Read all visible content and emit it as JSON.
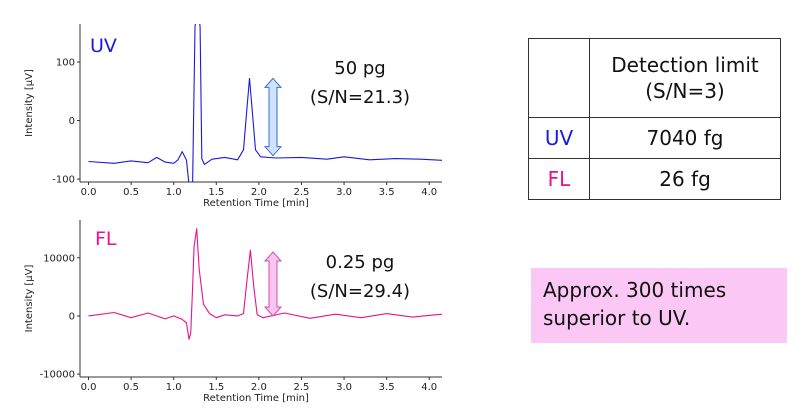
{
  "chart_data": [
    {
      "type": "line",
      "panel_label": "UV",
      "color": "#1a1adc",
      "xlabel": "Retention Time [min]",
      "ylabel": "Intensity [μV]",
      "xlim": [
        -0.1,
        4.15
      ],
      "ylim": [
        -105,
        165
      ],
      "xticks": [
        "0.0",
        "0.5",
        "1.0",
        "1.5",
        "2.0",
        "2.5",
        "3.0",
        "3.5",
        "4.0"
      ],
      "xtick_values": [
        0,
        0.5,
        1,
        1.5,
        2,
        2.5,
        3,
        3.5,
        4
      ],
      "yticks": [
        "100",
        "0",
        "-100"
      ],
      "ytick_values": [
        100,
        0,
        -100
      ],
      "annotation": {
        "amount": "50 pg",
        "sn": "(S/N=21.3)",
        "arrow_top": 72,
        "arrow_bottom": -60
      },
      "series": [
        {
          "x": [
            0,
            0.3,
            0.5,
            0.7,
            0.8,
            0.9,
            1.0,
            1.05,
            1.1,
            1.15,
            1.18,
            1.22,
            1.25,
            1.28,
            1.31,
            1.33,
            1.36,
            1.45,
            1.6,
            1.75,
            1.82,
            1.86,
            1.89,
            1.92,
            1.96,
            2.02,
            2.2,
            2.5,
            2.8,
            3.0,
            3.3,
            3.6,
            3.9,
            4.15
          ],
          "y": [
            -70,
            -73,
            -69,
            -72,
            -63,
            -71,
            -73,
            -67,
            -53,
            -68,
            -110,
            -130,
            160,
            200,
            160,
            -65,
            -75,
            -66,
            -63,
            -67,
            -50,
            20,
            72,
            20,
            -50,
            -62,
            -64,
            -63,
            -66,
            -62,
            -67,
            -65,
            -66,
            -68
          ]
        }
      ]
    },
    {
      "type": "line",
      "panel_label": "FL",
      "color": "#e6138c",
      "xlabel": "Retention Time [min]",
      "ylabel": "Intensity [μV]",
      "xlim": [
        -0.1,
        4.15
      ],
      "ylim": [
        -10500,
        16500
      ],
      "xticks": [
        "0.0",
        "0.5",
        "1.0",
        "1.5",
        "2.0",
        "2.5",
        "3.0",
        "3.5",
        "4.0"
      ],
      "xtick_values": [
        0,
        0.5,
        1,
        1.5,
        2,
        2.5,
        3,
        3.5,
        4
      ],
      "yticks": [
        "10000",
        "0",
        "-10000"
      ],
      "ytick_values": [
        10000,
        0,
        -10000
      ],
      "annotation": {
        "amount": "0.25 pg",
        "sn": "(S/N=29.4)",
        "arrow_top": 11000,
        "arrow_bottom": 0
      },
      "series": [
        {
          "x": [
            0,
            0.3,
            0.5,
            0.7,
            0.9,
            1.0,
            1.1,
            1.15,
            1.18,
            1.2,
            1.22,
            1.24,
            1.27,
            1.3,
            1.35,
            1.42,
            1.5,
            1.6,
            1.75,
            1.82,
            1.86,
            1.9,
            1.94,
            1.98,
            2.05,
            2.3,
            2.6,
            2.9,
            3.2,
            3.5,
            3.8,
            4.15
          ],
          "y": [
            0,
            600,
            -300,
            500,
            -500,
            0,
            -600,
            -1200,
            -4000,
            -3000,
            4000,
            12000,
            15000,
            8000,
            2000,
            400,
            -300,
            200,
            0,
            400,
            6000,
            11300,
            5000,
            200,
            -300,
            500,
            -400,
            300,
            -300,
            400,
            -200,
            300
          ]
        }
      ]
    }
  ],
  "table": {
    "header": "Detection limit\n(S/N=3)",
    "header_line1": "Detection limit",
    "header_line2": "(S/N=3)",
    "rows": [
      {
        "label": "UV",
        "value": "7040 fg",
        "color": "#1a1adc"
      },
      {
        "label": "FL",
        "value": "26 fg",
        "color": "#e6138c"
      }
    ]
  },
  "note": {
    "line1": "Approx. 300 times",
    "line2": "superior to UV.",
    "background": "#fbc8f5"
  }
}
